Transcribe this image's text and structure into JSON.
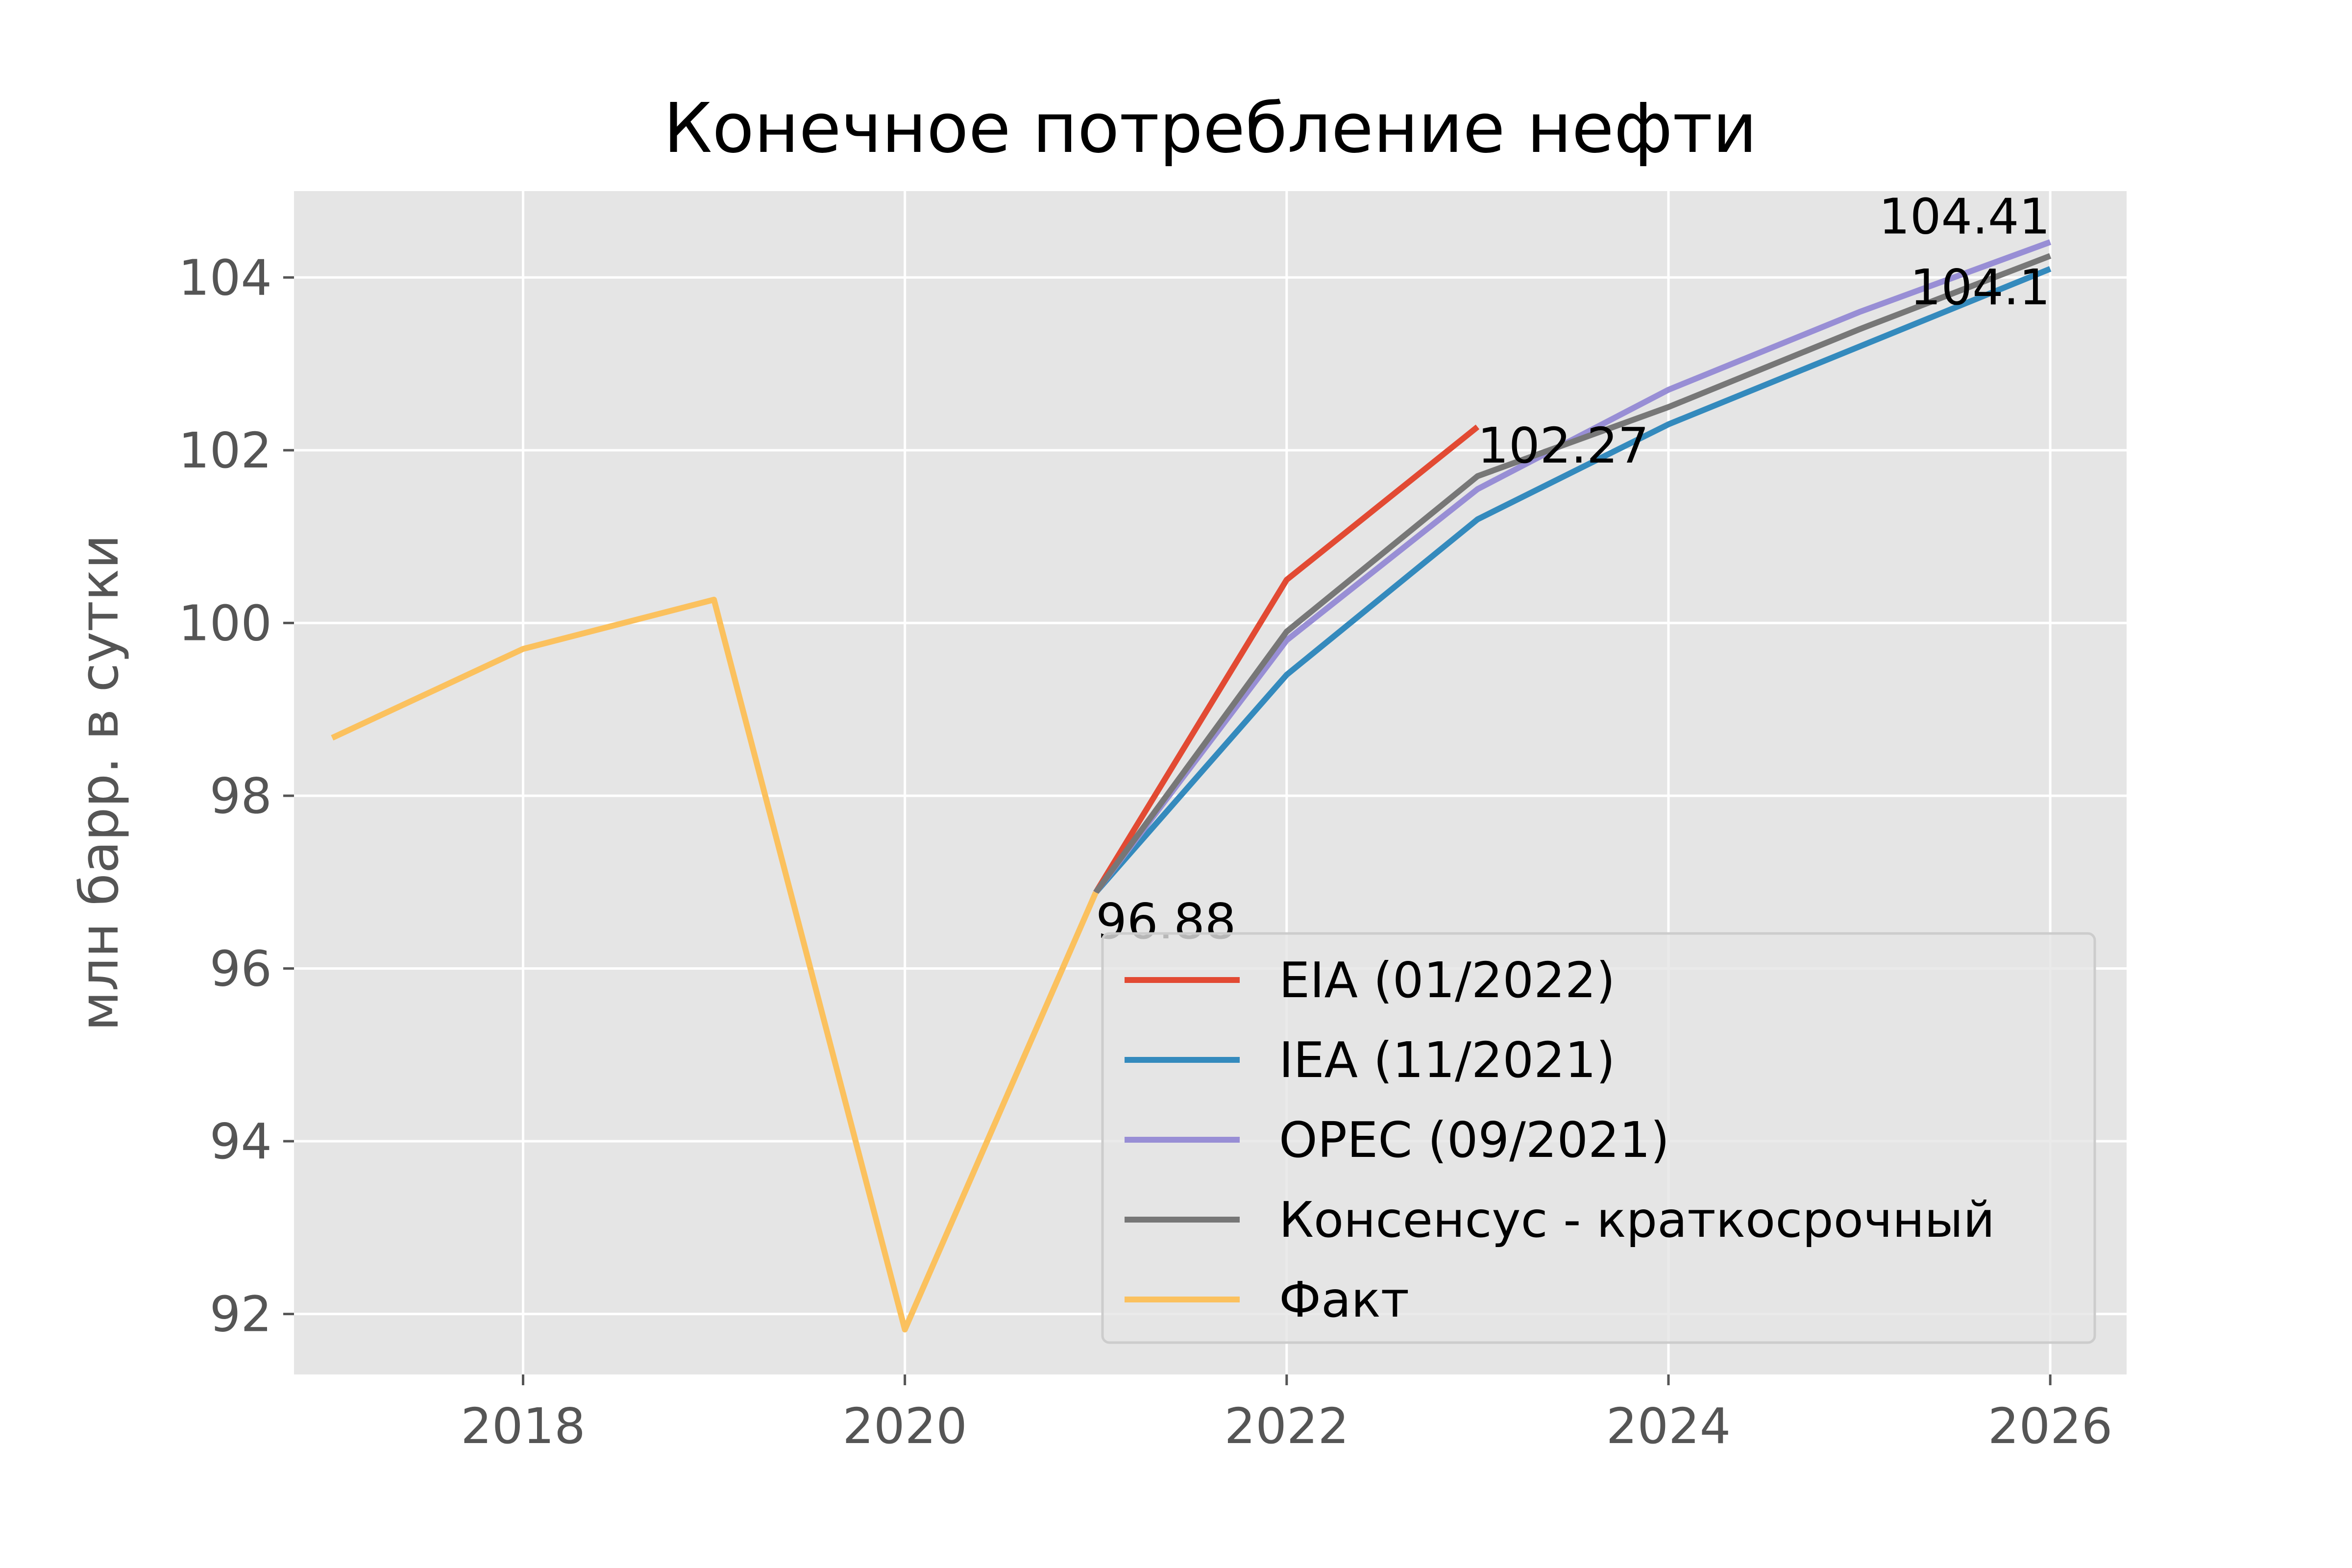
{
  "chart_data": {
    "type": "line",
    "title": "Конечное потребление нефти",
    "xlabel": "",
    "ylabel": "млн барр. в сутки",
    "xlim": [
      2016.8,
      2026.4
    ],
    "ylim": [
      91.3,
      105.0
    ],
    "xticks": [
      2018,
      2020,
      2022,
      2024,
      2026
    ],
    "yticks": [
      92,
      94,
      96,
      98,
      100,
      102,
      104
    ],
    "grid": true,
    "legend_position": "lower-right",
    "series": [
      {
        "name": "EIA (01/2022)",
        "color": "#E24A33",
        "x": [
          2021,
          2022,
          2023
        ],
        "y": [
          96.88,
          100.5,
          102.27
        ]
      },
      {
        "name": "IEA (11/2021)",
        "color": "#348ABD",
        "x": [
          2021,
          2022,
          2023,
          2024,
          2025,
          2026
        ],
        "y": [
          96.88,
          99.4,
          101.2,
          102.3,
          103.2,
          104.1
        ]
      },
      {
        "name": "OPEC (09/2021)",
        "color": "#988ED5",
        "x": [
          2021,
          2022,
          2023,
          2024,
          2025,
          2026
        ],
        "y": [
          96.88,
          99.8,
          101.55,
          102.7,
          103.6,
          104.41
        ]
      },
      {
        "name": "Консенсус - краткосрочный",
        "color": "#777777",
        "x": [
          2021,
          2022,
          2023,
          2024,
          2025,
          2026
        ],
        "y": [
          96.88,
          99.9,
          101.7,
          102.5,
          103.4,
          104.25
        ]
      },
      {
        "name": "Факт",
        "color": "#FBC15E",
        "x": [
          2017,
          2018,
          2019,
          2020,
          2021
        ],
        "y": [
          98.67,
          99.7,
          100.27,
          91.82,
          96.88
        ]
      }
    ],
    "annotations": [
      {
        "text": "96.88",
        "x": 2021,
        "y": 96.88
      },
      {
        "text": "102.27",
        "x": 2023,
        "y": 102.27
      },
      {
        "text": "104.41",
        "x": 2026,
        "y": 104.41
      },
      {
        "text": "104.1",
        "x": 2026,
        "y": 104.1
      }
    ]
  }
}
